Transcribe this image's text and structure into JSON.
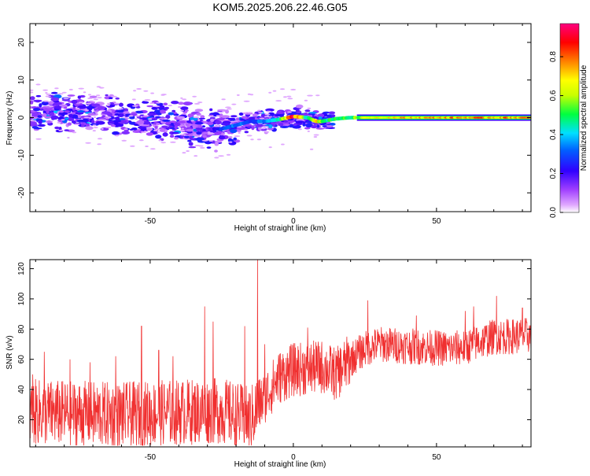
{
  "title": "KOM5.2025.206.22.46.G05",
  "chart_data": [
    {
      "type": "heatmap",
      "xlabel": "Height of straight line (km)",
      "ylabel": "Frequency (Hz)",
      "xlim": [
        -92,
        83
      ],
      "ylim": [
        -25,
        25
      ],
      "xticks": [
        -50,
        0,
        50
      ],
      "yticks": [
        -20,
        -10,
        0,
        10,
        20
      ],
      "colorbar": {
        "label": "Normalized spectral amplitude",
        "range": [
          0,
          0.97
        ],
        "ticks": [
          "0.0",
          "0.2",
          "0.4",
          "0.6",
          "0.8"
        ],
        "colormap": "rainbow (violet-blue-cyan-green-yellow-red-magenta)"
      },
      "ridge": {
        "x": [
          -90,
          -80,
          -70,
          -60,
          -50,
          -40,
          -30,
          -25,
          -20,
          -15,
          -10,
          -5,
          0,
          5,
          8,
          10,
          15,
          20,
          25,
          40,
          60,
          83
        ],
        "freq": [
          1.5,
          1.5,
          1.0,
          0.5,
          -0.5,
          -1.5,
          -3.0,
          -3.0,
          -2.0,
          -1.0,
          -1.0,
          -0.5,
          0.3,
          0.0,
          -1.0,
          -1.0,
          -0.3,
          0.0,
          0.0,
          0.0,
          0.0,
          0.0
        ],
        "amplitude": [
          0.1,
          0.1,
          0.1,
          0.1,
          0.1,
          0.1,
          0.12,
          0.3,
          0.35,
          0.3,
          0.35,
          0.5,
          0.9,
          0.45,
          0.85,
          0.5,
          0.55,
          0.5,
          0.7,
          0.75,
          0.8,
          0.8
        ]
      }
    },
    {
      "type": "line",
      "xlabel": "Height of straight line (km)",
      "ylabel": "SNR (v/v)",
      "xlim": [
        -92,
        83
      ],
      "ylim": [
        2,
        126
      ],
      "xticks": [
        -50,
        0,
        50
      ],
      "yticks": [
        20,
        40,
        60,
        80,
        100,
        120
      ],
      "series": [
        {
          "color": "#f03030",
          "trend_x": [
            -92,
            -60,
            -40,
            -25,
            -15,
            -12,
            -5,
            0,
            10,
            15,
            20,
            25,
            30,
            45,
            55,
            60,
            70,
            75,
            83
          ],
          "trend_y": [
            25,
            23,
            25,
            26,
            20,
            30,
            48,
            53,
            55,
            50,
            60,
            67,
            70,
            68,
            67,
            68,
            75,
            75,
            76
          ],
          "spikes": [
            {
              "x": -91,
              "y": 50
            },
            {
              "x": -87,
              "y": 65
            },
            {
              "x": -78,
              "y": 60
            },
            {
              "x": -71,
              "y": 58
            },
            {
              "x": -62,
              "y": 62
            },
            {
              "x": -53,
              "y": 82
            },
            {
              "x": -47,
              "y": 66
            },
            {
              "x": -42,
              "y": 62
            },
            {
              "x": -31,
              "y": 95
            },
            {
              "x": -28,
              "y": 85
            },
            {
              "x": -17,
              "y": 82
            },
            {
              "x": -12.5,
              "y": 126
            },
            {
              "x": -10,
              "y": 70
            },
            {
              "x": 5,
              "y": 81
            },
            {
              "x": 19,
              "y": 70
            },
            {
              "x": 26,
              "y": 99
            },
            {
              "x": 43,
              "y": 89
            },
            {
              "x": 60,
              "y": 92
            },
            {
              "x": 63,
              "y": 95
            },
            {
              "x": 71,
              "y": 102
            },
            {
              "x": 80,
              "y": 94
            }
          ]
        }
      ]
    }
  ]
}
